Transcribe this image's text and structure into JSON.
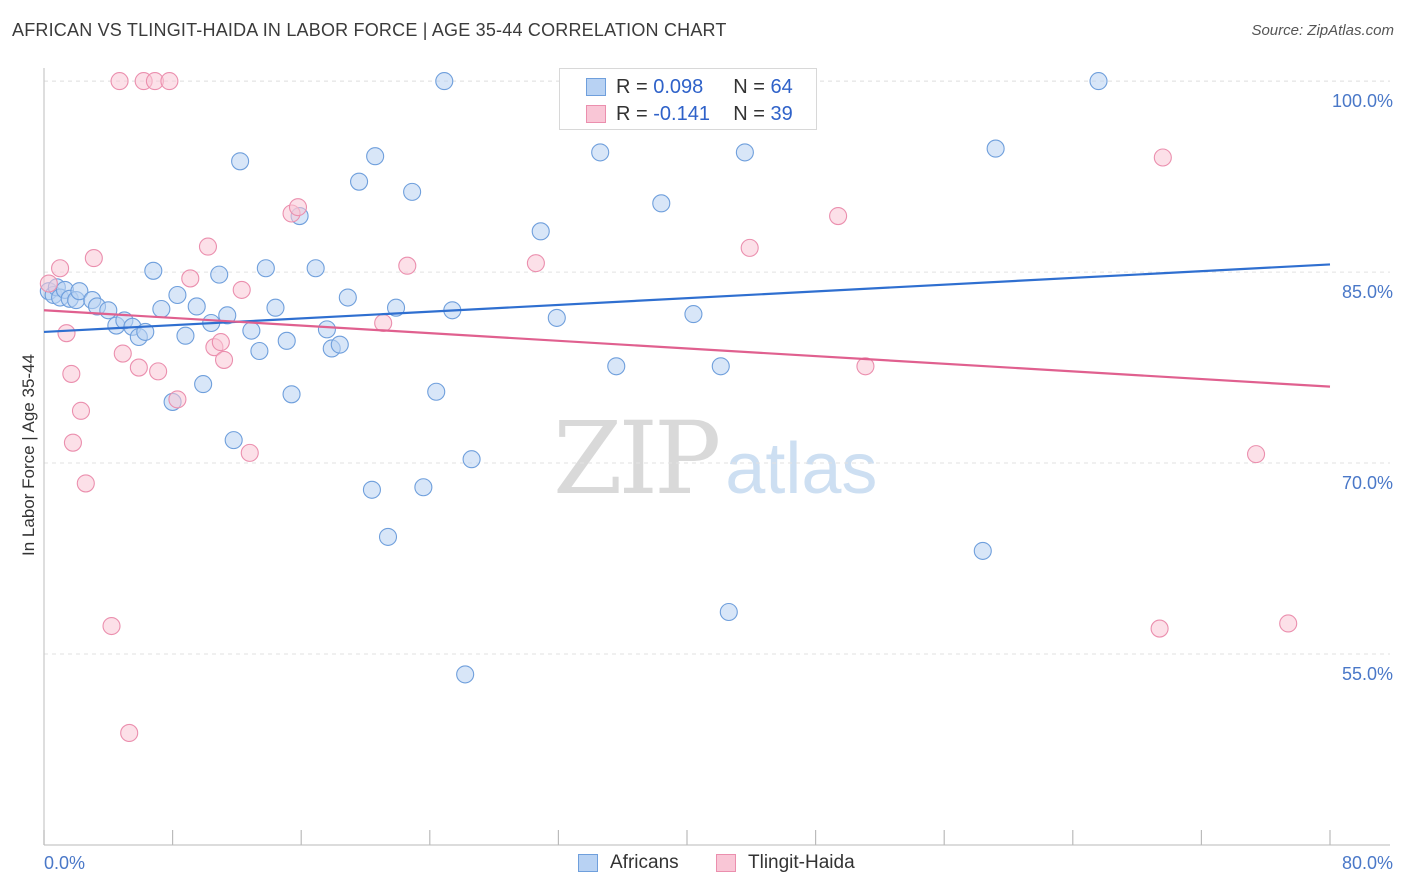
{
  "header": {
    "title": "AFRICAN VS TLINGIT-HAIDA IN LABOR FORCE | AGE 35-44 CORRELATION CHART",
    "source": "Source: ZipAtlas.com"
  },
  "watermark": {
    "zip": "ZIP",
    "atlas": "atlas"
  },
  "legend_top": {
    "rows": [
      {
        "r_label": "R =",
        "r_value": "0.098",
        "n_label": "N =",
        "n_value": "64"
      },
      {
        "r_label": "R =",
        "r_value": "-0.141",
        "n_label": "N =",
        "n_value": "39"
      }
    ]
  },
  "legend_bottom": {
    "series_a": "Africans",
    "series_b": "Tlingit-Haida"
  },
  "colors": {
    "africans_fill": "#b8d2f3",
    "africans_stroke": "#6f9fdc",
    "africans_line": "#2f6fd0",
    "tlingit_fill": "#f9c6d6",
    "tlingit_stroke": "#eb8fae",
    "tlingit_line": "#e0608f",
    "tick_text": "#4a78c8",
    "grid": "#e2e2e2"
  },
  "chart_data": {
    "type": "scatter",
    "title": "AFRICAN VS TLINGIT-HAIDA IN LABOR FORCE | AGE 35-44 CORRELATION CHART",
    "xlabel": "",
    "ylabel": "In Labor Force | Age 35-44",
    "xlim": [
      0,
      80
    ],
    "ylim": [
      40,
      101.5
    ],
    "x_tick_labels": [
      "0.0%",
      "80.0%"
    ],
    "y_ticks": [
      55,
      70,
      85,
      100
    ],
    "y_tick_labels": [
      "55.0%",
      "70.0%",
      "85.0%",
      "100.0%"
    ],
    "grid": true,
    "legend_position": "top-center",
    "series": [
      {
        "name": "Africans",
        "r": 0.098,
        "n": 64,
        "trend": [
          [
            0,
            80.3
          ],
          [
            80,
            85.6
          ]
        ],
        "points": [
          [
            0.3,
            83.5
          ],
          [
            0.6,
            83.2
          ],
          [
            0.8,
            83.8
          ],
          [
            1.0,
            83.0
          ],
          [
            1.3,
            83.6
          ],
          [
            1.6,
            82.9
          ],
          [
            2.0,
            82.8
          ],
          [
            2.2,
            83.5
          ],
          [
            3.0,
            82.8
          ],
          [
            3.3,
            82.3
          ],
          [
            4.0,
            82.0
          ],
          [
            4.5,
            80.8
          ],
          [
            5.0,
            81.2
          ],
          [
            5.5,
            80.7
          ],
          [
            5.9,
            79.9
          ],
          [
            6.3,
            80.3
          ],
          [
            6.8,
            85.1
          ],
          [
            7.3,
            82.1
          ],
          [
            8.0,
            74.8
          ],
          [
            8.3,
            83.2
          ],
          [
            8.8,
            80.0
          ],
          [
            9.5,
            82.3
          ],
          [
            9.9,
            76.2
          ],
          [
            10.4,
            81.0
          ],
          [
            10.9,
            84.8
          ],
          [
            11.4,
            81.6
          ],
          [
            11.8,
            71.8
          ],
          [
            12.2,
            93.7
          ],
          [
            12.9,
            80.4
          ],
          [
            13.4,
            78.8
          ],
          [
            13.8,
            85.3
          ],
          [
            14.4,
            82.2
          ],
          [
            15.1,
            79.6
          ],
          [
            15.4,
            75.4
          ],
          [
            15.9,
            89.4
          ],
          [
            16.9,
            85.3
          ],
          [
            17.6,
            80.5
          ],
          [
            17.9,
            79.0
          ],
          [
            18.4,
            79.3
          ],
          [
            18.9,
            83.0
          ],
          [
            19.6,
            92.1
          ],
          [
            20.4,
            67.9
          ],
          [
            20.6,
            94.1
          ],
          [
            21.4,
            64.2
          ],
          [
            21.9,
            82.2
          ],
          [
            22.9,
            91.3
          ],
          [
            23.6,
            68.1
          ],
          [
            24.4,
            75.6
          ],
          [
            24.9,
            100.0
          ],
          [
            25.4,
            82.0
          ],
          [
            26.2,
            53.4
          ],
          [
            26.6,
            70.3
          ],
          [
            30.9,
            88.2
          ],
          [
            31.9,
            81.4
          ],
          [
            34.6,
            94.4
          ],
          [
            35.6,
            77.6
          ],
          [
            38.4,
            90.4
          ],
          [
            40.4,
            81.7
          ],
          [
            42.1,
            77.6
          ],
          [
            42.6,
            58.3
          ],
          [
            43.6,
            94.4
          ],
          [
            58.4,
            63.1
          ],
          [
            59.2,
            94.7
          ],
          [
            65.6,
            100.0
          ]
        ]
      },
      {
        "name": "Tlingit-Haida",
        "r": -0.141,
        "n": 39,
        "trend": [
          [
            0,
            82.0
          ],
          [
            80,
            76.0
          ]
        ],
        "points": [
          [
            0.3,
            84.1
          ],
          [
            1.0,
            85.3
          ],
          [
            1.4,
            80.2
          ],
          [
            1.7,
            77.0
          ],
          [
            1.8,
            71.6
          ],
          [
            2.3,
            74.1
          ],
          [
            2.6,
            68.4
          ],
          [
            3.1,
            86.1
          ],
          [
            4.2,
            57.2
          ],
          [
            4.7,
            100.0
          ],
          [
            4.9,
            78.6
          ],
          [
            5.3,
            48.8
          ],
          [
            5.9,
            77.5
          ],
          [
            6.2,
            100.0
          ],
          [
            6.9,
            100.0
          ],
          [
            7.1,
            77.2
          ],
          [
            7.8,
            100.0
          ],
          [
            8.3,
            75.0
          ],
          [
            9.1,
            84.5
          ],
          [
            10.2,
            87.0
          ],
          [
            10.6,
            79.1
          ],
          [
            11.0,
            79.5
          ],
          [
            11.2,
            78.1
          ],
          [
            12.3,
            83.6
          ],
          [
            12.8,
            70.8
          ],
          [
            15.4,
            89.6
          ],
          [
            15.8,
            90.1
          ],
          [
            21.1,
            81.0
          ],
          [
            22.6,
            85.5
          ],
          [
            30.6,
            85.7
          ],
          [
            35.9,
            100.0
          ],
          [
            37.1,
            100.0
          ],
          [
            43.9,
            86.9
          ],
          [
            49.4,
            89.4
          ],
          [
            51.1,
            77.6
          ],
          [
            69.4,
            57.0
          ],
          [
            69.6,
            94.0
          ],
          [
            75.4,
            70.7
          ],
          [
            77.4,
            57.4
          ]
        ]
      }
    ]
  }
}
